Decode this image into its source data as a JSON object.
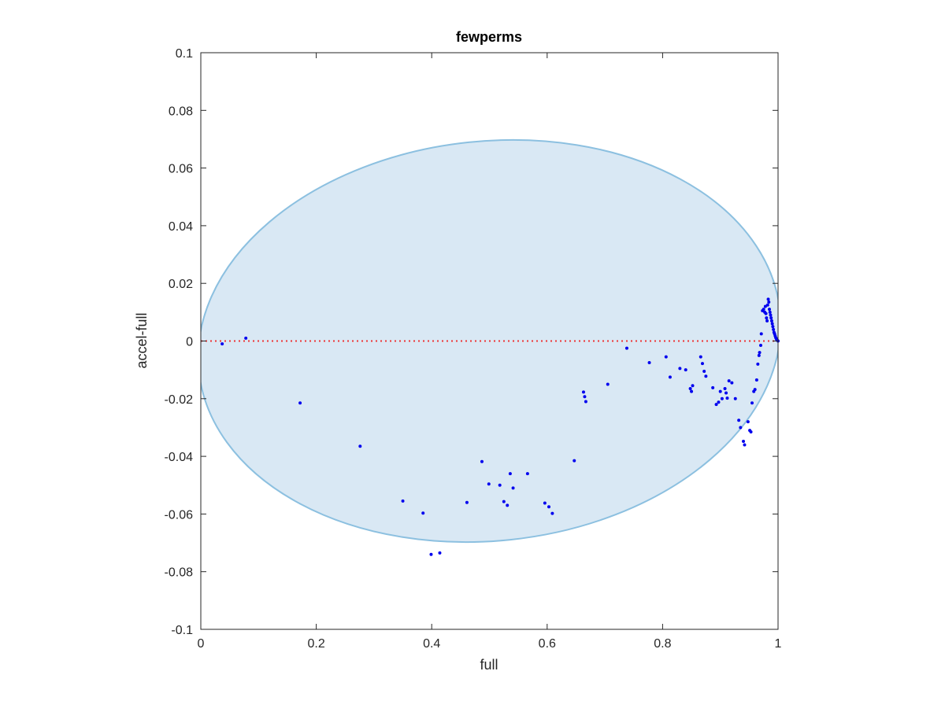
{
  "chart_data": {
    "type": "scatter",
    "title": "fewperms",
    "xlabel": "full",
    "ylabel": "accel-full",
    "xlim": [
      0,
      1
    ],
    "ylim": [
      -0.1,
      0.1
    ],
    "xticks": [
      0,
      0.2,
      0.4,
      0.6,
      0.8,
      1
    ],
    "xtick_labels": [
      "0",
      "0.2",
      "0.4",
      "0.6",
      "0.8",
      "1"
    ],
    "yticks": [
      -0.1,
      -0.08,
      -0.06,
      -0.04,
      -0.02,
      0,
      0.02,
      0.04,
      0.06,
      0.08,
      0.1
    ],
    "ytick_labels": [
      "-0.1",
      "-0.08",
      "-0.06",
      "-0.04",
      "-0.02",
      "0",
      "0.02",
      "0.04",
      "0.06",
      "0.08",
      "0.1"
    ],
    "grid": false,
    "ellipse": {
      "cx": 0.5,
      "cy": 0.0,
      "rx": 0.5,
      "ry": 0.0693,
      "tilt_deg": -6,
      "fill": "#d9e8f4",
      "stroke": "#8cc0e0"
    },
    "reference_line": {
      "y": 0,
      "color": "#ee3333",
      "style": "dotted"
    },
    "marker_color": "#0000ee",
    "points": [
      [
        0.037,
        -0.001
      ],
      [
        0.078,
        0.001
      ],
      [
        0.172,
        -0.0215
      ],
      [
        0.276,
        -0.0365
      ],
      [
        0.35,
        -0.0555
      ],
      [
        0.385,
        -0.0597
      ],
      [
        0.399,
        -0.074
      ],
      [
        0.414,
        -0.0735
      ],
      [
        0.461,
        -0.056
      ],
      [
        0.487,
        -0.0418
      ],
      [
        0.499,
        -0.0496
      ],
      [
        0.518,
        -0.05
      ],
      [
        0.525,
        -0.0557
      ],
      [
        0.531,
        -0.057
      ],
      [
        0.536,
        -0.046
      ],
      [
        0.541,
        -0.051
      ],
      [
        0.566,
        -0.046
      ],
      [
        0.596,
        -0.0562
      ],
      [
        0.603,
        -0.0575
      ],
      [
        0.609,
        -0.0598
      ],
      [
        0.647,
        -0.0415
      ],
      [
        0.663,
        -0.0177
      ],
      [
        0.665,
        -0.0193
      ],
      [
        0.667,
        -0.021
      ],
      [
        0.705,
        -0.015
      ],
      [
        0.738,
        -0.0025
      ],
      [
        0.777,
        -0.0075
      ],
      [
        0.806,
        -0.0055
      ],
      [
        0.813,
        -0.0125
      ],
      [
        0.83,
        -0.0095
      ],
      [
        0.84,
        -0.01
      ],
      [
        0.848,
        -0.0165
      ],
      [
        0.85,
        -0.0175
      ],
      [
        0.852,
        -0.0155
      ],
      [
        0.866,
        -0.0055
      ],
      [
        0.869,
        -0.0078
      ],
      [
        0.872,
        -0.0105
      ],
      [
        0.875,
        -0.0122
      ],
      [
        0.887,
        -0.0162
      ],
      [
        0.893,
        -0.022
      ],
      [
        0.897,
        -0.0212
      ],
      [
        0.9,
        -0.0175
      ],
      [
        0.903,
        -0.02
      ],
      [
        0.908,
        -0.0165
      ],
      [
        0.91,
        -0.018
      ],
      [
        0.912,
        -0.0198
      ],
      [
        0.915,
        -0.0138
      ],
      [
        0.92,
        -0.0145
      ],
      [
        0.926,
        -0.02
      ],
      [
        0.932,
        -0.0275
      ],
      [
        0.935,
        -0.03
      ],
      [
        0.94,
        -0.0348
      ],
      [
        0.942,
        -0.036
      ],
      [
        0.948,
        -0.028
      ],
      [
        0.951,
        -0.031
      ],
      [
        0.953,
        -0.0315
      ],
      [
        0.955,
        -0.0215
      ],
      [
        0.958,
        -0.0175
      ],
      [
        0.96,
        -0.0168
      ],
      [
        0.963,
        -0.0135
      ],
      [
        0.965,
        -0.008
      ],
      [
        0.967,
        -0.005
      ],
      [
        0.968,
        -0.004
      ],
      [
        0.97,
        -0.0015
      ],
      [
        0.971,
        0.0025
      ],
      [
        0.973,
        0.0105
      ],
      [
        0.975,
        0.011
      ],
      [
        0.977,
        0.01
      ],
      [
        0.978,
        0.012
      ],
      [
        0.979,
        0.0095
      ],
      [
        0.98,
        0.008
      ],
      [
        0.981,
        0.007
      ],
      [
        0.982,
        0.0125
      ],
      [
        0.983,
        0.0145
      ],
      [
        0.984,
        0.0135
      ],
      [
        0.985,
        0.011
      ],
      [
        0.986,
        0.01
      ],
      [
        0.987,
        0.009
      ],
      [
        0.988,
        0.008
      ],
      [
        0.989,
        0.007
      ],
      [
        0.99,
        0.006
      ],
      [
        0.991,
        0.005
      ],
      [
        0.992,
        0.004
      ],
      [
        0.993,
        0.003
      ],
      [
        0.994,
        0.0025
      ],
      [
        0.995,
        0.0018
      ],
      [
        0.996,
        0.0012
      ],
      [
        0.997,
        0.0008
      ],
      [
        0.998,
        0.0004
      ],
      [
        0.999,
        0.0002
      ],
      [
        1.0,
        0.0
      ]
    ]
  }
}
